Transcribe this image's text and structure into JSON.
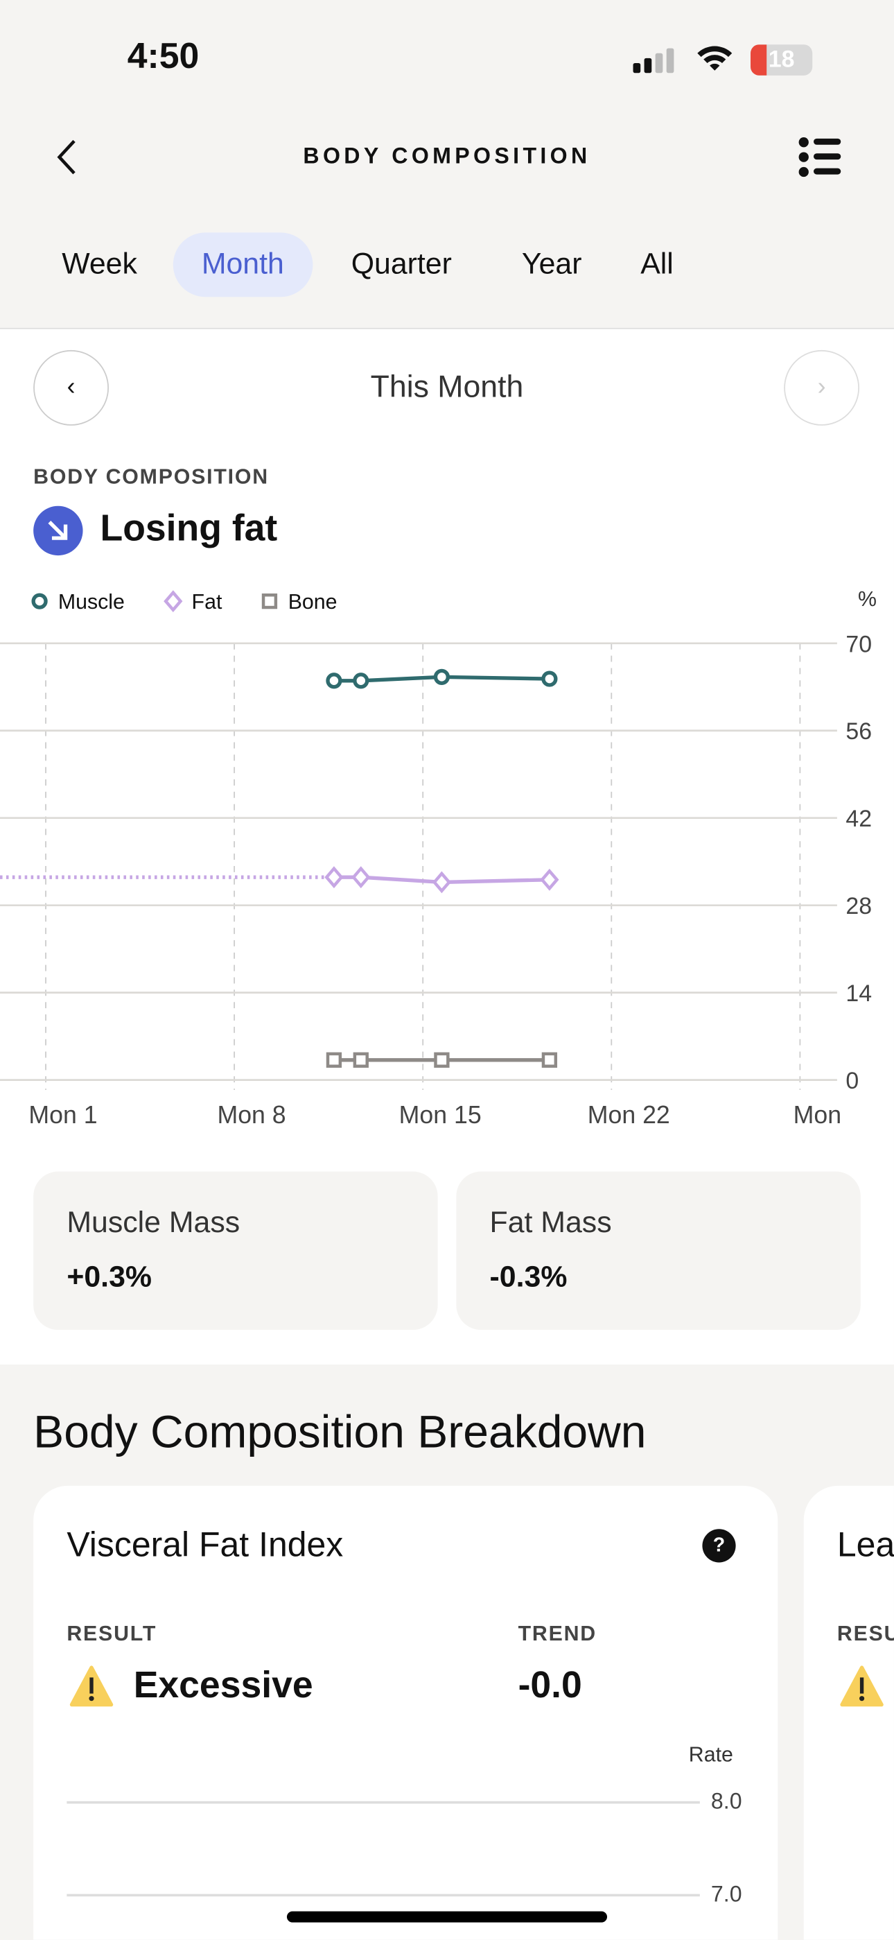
{
  "status_bar": {
    "time": "4:50",
    "battery": "18"
  },
  "header": {
    "title": "BODY COMPOSITION",
    "back_icon": "chevron-left-icon",
    "menu_icon": "list-icon"
  },
  "tabs": [
    {
      "label": "Week"
    },
    {
      "label": "Month",
      "active": true
    },
    {
      "label": "Quarter"
    },
    {
      "label": "Year"
    },
    {
      "label": "All"
    }
  ],
  "period": {
    "label": "This Month"
  },
  "summary": {
    "section_label": "BODY COMPOSITION",
    "status": "Losing fat",
    "status_icon": "arrow-down-right-icon",
    "accent": "#4a5fd0"
  },
  "chart_data": {
    "type": "line",
    "ylabel": "%",
    "ylim": [
      0,
      70
    ],
    "yticks": [
      70,
      56,
      42,
      28,
      14,
      0
    ],
    "xticks": [
      "Mon 1",
      "Mon 8",
      "Mon 15",
      "Mon 22",
      "Mon"
    ],
    "xtick_days": [
      1,
      8,
      15,
      22,
      29
    ],
    "grid": true,
    "legend": "top-left",
    "x_days": [
      11.7,
      12.7,
      15.7,
      19.7
    ],
    "series": [
      {
        "name": "Muscle",
        "values": [
          64.0,
          64.0,
          64.6,
          64.3
        ],
        "color": "#2f6b6e",
        "marker": "circle"
      },
      {
        "name": "Fat",
        "values": [
          32.5,
          32.5,
          31.7,
          32.1
        ],
        "color": "#c6a6e4",
        "marker": "diamond",
        "carried_from_previous": true
      },
      {
        "name": "Bone",
        "values": [
          3.2,
          3.2,
          3.2,
          3.2
        ],
        "color": "#8e8a87",
        "marker": "square"
      }
    ]
  },
  "stats": [
    {
      "title": "Muscle Mass",
      "value": "+0.3%"
    },
    {
      "title": "Fat Mass",
      "value": "-0.3%"
    }
  ],
  "breakdown": {
    "title": "Body Composition Breakdown",
    "cards": [
      {
        "title": "Visceral Fat Index",
        "result_label": "RESULT",
        "result": "Excessive",
        "trend_label": "TREND",
        "trend": "-0.0",
        "axis_label": "Rate",
        "yticks": [
          "8.0",
          "7.0"
        ]
      },
      {
        "title": "Lea",
        "result_label": "RESU"
      }
    ]
  }
}
